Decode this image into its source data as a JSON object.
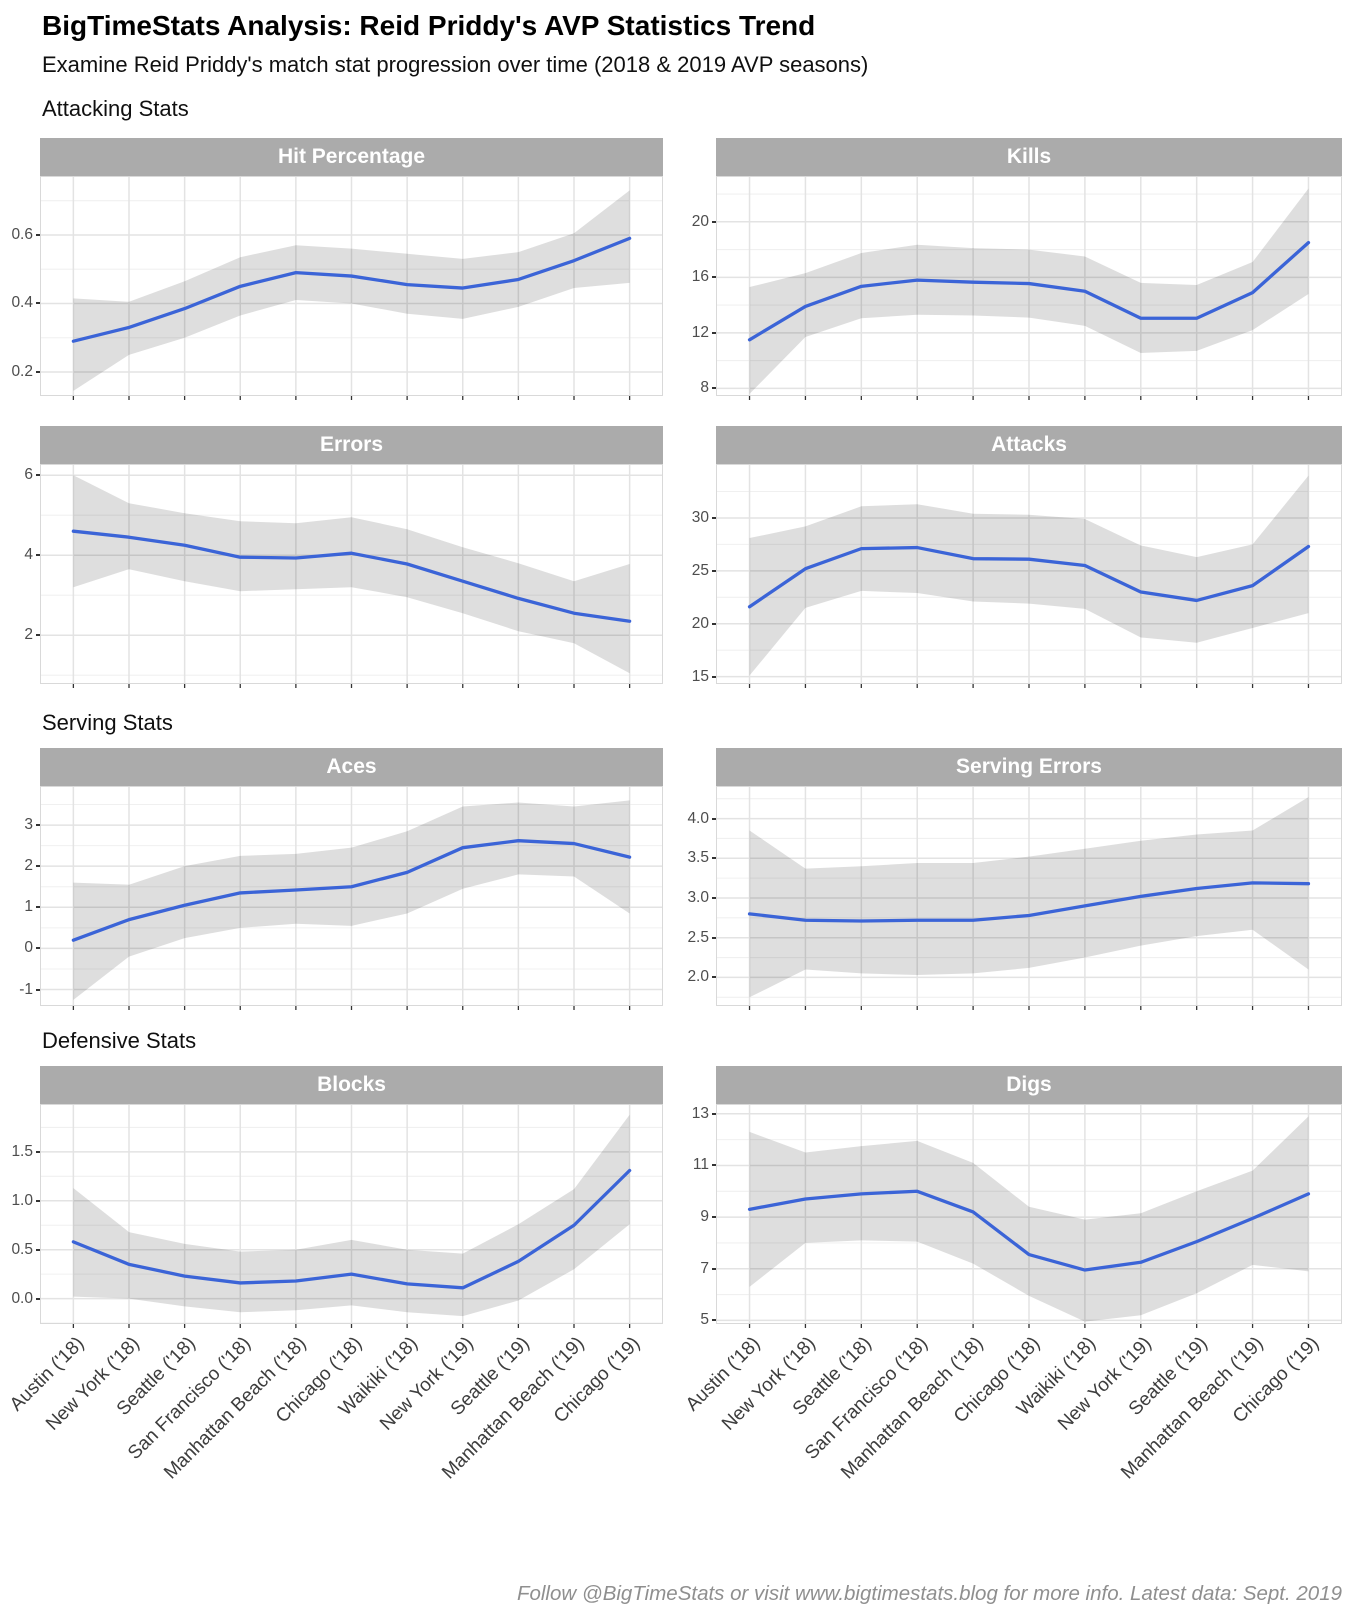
{
  "header": {
    "title": "BigTimeStats Analysis: Reid Priddy's AVP Statistics Trend",
    "subtitle": "Examine Reid Priddy's match stat progression over time (2018 & 2019 AVP seasons)"
  },
  "sections": [
    {
      "label": "Attacking Stats"
    },
    {
      "label": "Serving Stats"
    },
    {
      "label": "Defensive Stats"
    }
  ],
  "footer": {
    "caption": "Follow @BigTimeStats or visit www.bigtimestats.blog for more info. Latest data: Sept. 2019"
  },
  "colors": {
    "line": "#3B64D7",
    "ribbon": "#000000",
    "ribbon_opacity": 0.13,
    "strip_bg": "#ABABAB",
    "strip_text": "#FFFFFF",
    "grid_major": "#E3E3E3",
    "grid_minor": "#F0F0F0",
    "panel_border": "#D9D9D9",
    "axis_text": "#4D4D4D",
    "tick": "#333333"
  },
  "categories": [
    "Austin ('18)",
    "New York ('18)",
    "Seattle ('18)",
    "San Francisco ('18)",
    "Manhattan Beach ('18)",
    "Chicago ('18)",
    "Waikiki ('18)",
    "New York ('19)",
    "Seattle ('19)",
    "Manhattan Beach ('19)",
    "Chicago ('19)"
  ],
  "chart_data": [
    {
      "type": "line",
      "title": "Hit Percentage",
      "section": "Attacking Stats",
      "yticks": [
        0.2,
        0.4,
        0.6
      ],
      "ytick_labels": [
        "0.2",
        "0.4",
        "0.6"
      ],
      "ylim": [
        0.13,
        0.772
      ],
      "values": [
        0.29,
        0.33,
        0.385,
        0.45,
        0.49,
        0.48,
        0.455,
        0.445,
        0.47,
        0.525,
        0.59
      ],
      "ribbon_lower": [
        0.145,
        0.25,
        0.3,
        0.365,
        0.41,
        0.4,
        0.37,
        0.355,
        0.39,
        0.445,
        0.46
      ],
      "ribbon_upper": [
        0.415,
        0.405,
        0.465,
        0.535,
        0.57,
        0.56,
        0.545,
        0.53,
        0.55,
        0.605,
        0.73
      ]
    },
    {
      "type": "line",
      "title": "Kills",
      "section": "Attacking Stats",
      "yticks": [
        8,
        12,
        16,
        20
      ],
      "ytick_labels": [
        "8",
        "12",
        "16",
        "20"
      ],
      "ylim": [
        7.45,
        23.3
      ],
      "values": [
        11.5,
        13.9,
        15.35,
        15.8,
        15.65,
        15.55,
        15.0,
        13.05,
        13.05,
        14.9,
        18.5
      ],
      "ribbon_lower": [
        7.6,
        11.7,
        13.05,
        13.3,
        13.25,
        13.1,
        12.5,
        10.55,
        10.7,
        12.2,
        14.8
      ],
      "ribbon_upper": [
        15.3,
        16.3,
        17.75,
        18.35,
        18.1,
        18.0,
        17.5,
        15.6,
        15.45,
        17.1,
        22.4
      ]
    },
    {
      "type": "line",
      "title": "Errors",
      "section": "Attacking Stats",
      "yticks": [
        2,
        4,
        6
      ],
      "ytick_labels": [
        "2",
        "4",
        "6"
      ],
      "ylim": [
        0.78,
        6.28
      ],
      "values": [
        4.6,
        4.45,
        4.25,
        3.95,
        3.93,
        4.05,
        3.78,
        3.35,
        2.92,
        2.55,
        2.35
      ],
      "ribbon_lower": [
        3.2,
        3.65,
        3.35,
        3.1,
        3.15,
        3.2,
        2.95,
        2.55,
        2.1,
        1.8,
        1.05
      ],
      "ribbon_upper": [
        6.0,
        5.3,
        5.05,
        4.85,
        4.8,
        4.95,
        4.65,
        4.2,
        3.8,
        3.35,
        3.78
      ]
    },
    {
      "type": "line",
      "title": "Attacks",
      "section": "Attacking Stats",
      "yticks": [
        15,
        20,
        25,
        30
      ],
      "ytick_labels": [
        "15",
        "20",
        "25",
        "30"
      ],
      "ylim": [
        14.3,
        35.1
      ],
      "values": [
        21.6,
        25.2,
        27.1,
        27.2,
        26.15,
        26.1,
        25.5,
        23.0,
        22.2,
        23.6,
        27.3
      ],
      "ribbon_lower": [
        15.1,
        21.5,
        23.1,
        22.9,
        22.1,
        21.9,
        21.4,
        18.7,
        18.2,
        19.6,
        21.0
      ],
      "ribbon_upper": [
        28.1,
        29.2,
        31.1,
        31.3,
        30.4,
        30.3,
        29.9,
        27.4,
        26.3,
        27.5,
        34.0
      ]
    },
    {
      "type": "line",
      "title": "Aces",
      "section": "Serving Stats",
      "yticks": [
        -1,
        0,
        1,
        2,
        3
      ],
      "ytick_labels": [
        "-1",
        "0",
        "1",
        "2",
        "3"
      ],
      "ylim": [
        -1.4,
        3.95
      ],
      "values": [
        0.2,
        0.7,
        1.05,
        1.35,
        1.42,
        1.5,
        1.85,
        2.45,
        2.62,
        2.55,
        2.22
      ],
      "ribbon_lower": [
        -1.25,
        -0.2,
        0.25,
        0.5,
        0.6,
        0.55,
        0.85,
        1.45,
        1.8,
        1.75,
        0.85
      ],
      "ribbon_upper": [
        1.6,
        1.55,
        2.0,
        2.25,
        2.3,
        2.45,
        2.85,
        3.45,
        3.55,
        3.45,
        3.6
      ]
    },
    {
      "type": "line",
      "title": "Serving Errors",
      "section": "Serving Stats",
      "yticks": [
        2.0,
        2.5,
        3.0,
        3.5,
        4.0
      ],
      "ytick_labels": [
        "2.0",
        "2.5",
        "3.0",
        "3.5",
        "4.0"
      ],
      "ylim": [
        1.64,
        4.41
      ],
      "values": [
        2.8,
        2.72,
        2.71,
        2.72,
        2.72,
        2.78,
        2.9,
        3.02,
        3.12,
        3.19,
        3.18
      ],
      "ribbon_lower": [
        1.75,
        2.1,
        2.05,
        2.03,
        2.05,
        2.12,
        2.25,
        2.4,
        2.52,
        2.6,
        2.1
      ],
      "ribbon_upper": [
        3.85,
        3.37,
        3.4,
        3.44,
        3.44,
        3.52,
        3.62,
        3.72,
        3.8,
        3.85,
        4.27
      ]
    },
    {
      "type": "line",
      "title": "Blocks",
      "section": "Defensive Stats",
      "yticks": [
        0.0,
        0.5,
        1.0,
        1.5
      ],
      "ytick_labels": [
        "0.0",
        "0.5",
        "1.0",
        "1.5"
      ],
      "ylim": [
        -0.26,
        1.99
      ],
      "values": [
        0.58,
        0.35,
        0.23,
        0.16,
        0.18,
        0.25,
        0.15,
        0.11,
        0.38,
        0.75,
        1.31
      ],
      "ribbon_lower": [
        0.02,
        0.0,
        -0.08,
        -0.14,
        -0.12,
        -0.07,
        -0.14,
        -0.18,
        -0.02,
        0.3,
        0.76
      ],
      "ribbon_upper": [
        1.13,
        0.68,
        0.56,
        0.48,
        0.5,
        0.6,
        0.5,
        0.46,
        0.76,
        1.12,
        1.88
      ]
    },
    {
      "type": "line",
      "title": "Digs",
      "section": "Defensive Stats",
      "yticks": [
        5,
        7,
        9,
        11,
        13
      ],
      "ytick_labels": [
        "5",
        "7",
        "9",
        "11",
        "13"
      ],
      "ylim": [
        4.86,
        13.38
      ],
      "values": [
        9.3,
        9.7,
        9.9,
        10.0,
        9.2,
        7.55,
        6.95,
        7.25,
        8.05,
        8.95,
        9.9
      ],
      "ribbon_lower": [
        6.3,
        8.0,
        8.1,
        8.05,
        7.2,
        5.95,
        4.95,
        5.2,
        6.05,
        7.15,
        6.9
      ],
      "ribbon_upper": [
        12.3,
        11.5,
        11.75,
        11.95,
        11.1,
        9.4,
        8.9,
        9.15,
        10.0,
        10.8,
        12.9
      ]
    }
  ]
}
